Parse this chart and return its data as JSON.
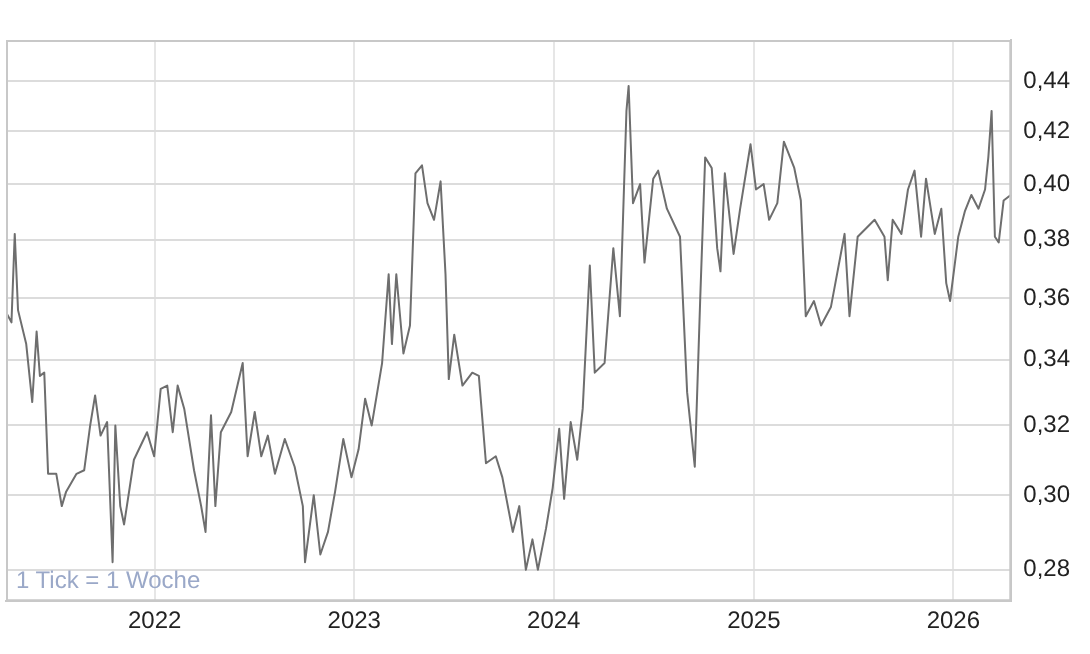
{
  "chart_data": {
    "type": "line",
    "color": "#6e6e6e",
    "log": true,
    "grid": true,
    "marker": "none",
    "line_style": "solid",
    "legend": false,
    "annotations": [
      "1 Tick = 1 Woche"
    ],
    "xlim": [
      "2021-04-04",
      "2026-04-17"
    ],
    "xticks": [
      {
        "value": "2022-01-01",
        "label": "2022"
      },
      {
        "value": "2023-01-01",
        "label": "2023"
      },
      {
        "value": "2024-01-01",
        "label": "2024"
      },
      {
        "value": "2025-01-01",
        "label": "2025"
      },
      {
        "value": "2026-01-01",
        "label": "2026"
      }
    ],
    "ylim": [
      0.272,
      0.457
    ],
    "yticks": [
      {
        "value": 0.28,
        "label": "0,28"
      },
      {
        "value": 0.3,
        "label": "0,30"
      },
      {
        "value": 0.32,
        "label": "0,32"
      },
      {
        "value": 0.34,
        "label": "0,34"
      },
      {
        "value": 0.36,
        "label": "0,36"
      },
      {
        "value": 0.38,
        "label": "0,38"
      },
      {
        "value": 0.4,
        "label": "0,40"
      },
      {
        "value": 0.42,
        "label": "0,42"
      },
      {
        "value": 0.44,
        "label": "0,44"
      }
    ],
    "x": [
      "2021-04-05",
      "2021-04-14",
      "2021-04-20",
      "2021-04-26",
      "2021-05-11",
      "2021-05-22",
      "2021-05-30",
      "2021-06-05",
      "2021-06-13",
      "2021-06-20",
      "2021-07-05",
      "2021-07-15",
      "2021-07-23",
      "2021-08-11",
      "2021-08-25",
      "2021-09-05",
      "2021-09-14",
      "2021-09-24",
      "2021-10-06",
      "2021-10-16",
      "2021-10-21",
      "2021-10-30",
      "2021-11-06",
      "2021-11-24",
      "2021-12-18",
      "2021-12-31",
      "2022-01-12",
      "2022-01-24",
      "2022-02-03",
      "2022-02-12",
      "2022-02-24",
      "2022-03-14",
      "2022-03-27",
      "2022-04-04",
      "2022-04-14",
      "2022-04-22",
      "2022-05-02",
      "2022-05-21",
      "2022-06-11",
      "2022-06-20",
      "2022-07-03",
      "2022-07-15",
      "2022-07-27",
      "2022-08-09",
      "2022-08-27",
      "2022-09-14",
      "2022-09-29",
      "2022-10-03",
      "2022-10-19",
      "2022-10-31",
      "2022-11-14",
      "2022-11-27",
      "2022-12-12",
      "2022-12-27",
      "2023-01-09",
      "2023-01-21",
      "2023-02-02",
      "2023-02-21",
      "2023-03-05",
      "2023-03-11",
      "2023-03-19",
      "2023-04-01",
      "2023-04-13",
      "2023-04-23",
      "2023-05-05",
      "2023-05-15",
      "2023-05-27",
      "2023-06-08",
      "2023-06-17",
      "2023-06-23",
      "2023-07-03",
      "2023-07-18",
      "2023-08-05",
      "2023-08-17",
      "2023-08-30",
      "2023-09-17",
      "2023-09-29",
      "2023-10-18",
      "2023-10-30",
      "2023-11-11",
      "2023-11-23",
      "2023-12-03",
      "2023-12-18",
      "2023-12-30",
      "2024-01-11",
      "2024-01-20",
      "2024-02-01",
      "2024-02-13",
      "2024-02-23",
      "2024-03-07",
      "2024-03-16",
      "2024-04-03",
      "2024-04-19",
      "2024-05-01",
      "2024-05-13",
      "2024-05-17",
      "2024-05-25",
      "2024-06-07",
      "2024-06-15",
      "2024-07-01",
      "2024-07-10",
      "2024-07-26",
      "2024-08-19",
      "2024-09-01",
      "2024-09-15",
      "2024-09-25",
      "2024-10-04",
      "2024-10-16",
      "2024-10-26",
      "2024-11-01",
      "2024-11-09",
      "2024-11-25",
      "2024-12-07",
      "2024-12-26",
      "2025-01-05",
      "2025-01-19",
      "2025-01-29",
      "2025-02-13",
      "2025-02-25",
      "2025-03-16",
      "2025-03-28",
      "2025-04-06",
      "2025-04-21",
      "2025-05-04",
      "2025-05-22",
      "2025-06-16",
      "2025-06-25",
      "2025-07-10",
      "2025-08-10",
      "2025-08-28",
      "2025-09-03",
      "2025-09-12",
      "2025-09-28",
      "2025-10-10",
      "2025-10-22",
      "2025-11-03",
      "2025-11-12",
      "2025-11-28",
      "2025-12-10",
      "2025-12-19",
      "2025-12-26",
      "2026-01-10",
      "2026-01-22",
      "2026-02-03",
      "2026-02-16",
      "2026-02-28",
      "2026-03-06",
      "2026-03-12",
      "2026-03-18",
      "2026-03-25",
      "2026-04-03",
      "2026-04-16"
    ],
    "values": [
      0.355,
      0.352,
      0.382,
      0.356,
      0.345,
      0.327,
      0.349,
      0.335,
      0.336,
      0.306,
      0.306,
      0.297,
      0.301,
      0.306,
      0.307,
      0.32,
      0.329,
      0.317,
      0.321,
      0.282,
      0.32,
      0.297,
      0.292,
      0.31,
      0.318,
      0.311,
      0.331,
      0.332,
      0.318,
      0.332,
      0.325,
      0.307,
      0.297,
      0.29,
      0.323,
      0.297,
      0.318,
      0.324,
      0.339,
      0.311,
      0.324,
      0.311,
      0.317,
      0.306,
      0.316,
      0.308,
      0.297,
      0.282,
      0.3,
      0.284,
      0.29,
      0.301,
      0.316,
      0.305,
      0.313,
      0.328,
      0.32,
      0.339,
      0.368,
      0.345,
      0.368,
      0.342,
      0.351,
      0.404,
      0.407,
      0.393,
      0.387,
      0.401,
      0.368,
      0.334,
      0.348,
      0.332,
      0.336,
      0.335,
      0.309,
      0.311,
      0.305,
      0.29,
      0.297,
      0.28,
      0.288,
      0.28,
      0.291,
      0.302,
      0.319,
      0.299,
      0.321,
      0.31,
      0.325,
      0.371,
      0.336,
      0.339,
      0.377,
      0.354,
      0.428,
      0.438,
      0.393,
      0.4,
      0.372,
      0.402,
      0.405,
      0.391,
      0.381,
      0.33,
      0.308,
      0.36,
      0.41,
      0.406,
      0.377,
      0.369,
      0.404,
      0.375,
      0.391,
      0.415,
      0.398,
      0.4,
      0.387,
      0.393,
      0.416,
      0.406,
      0.394,
      0.354,
      0.359,
      0.351,
      0.357,
      0.382,
      0.354,
      0.381,
      0.387,
      0.381,
      0.366,
      0.387,
      0.382,
      0.398,
      0.405,
      0.381,
      0.402,
      0.382,
      0.391,
      0.365,
      0.359,
      0.381,
      0.39,
      0.396,
      0.391,
      0.398,
      0.41,
      0.428,
      0.381,
      0.379,
      0.394,
      0.396
    ]
  }
}
